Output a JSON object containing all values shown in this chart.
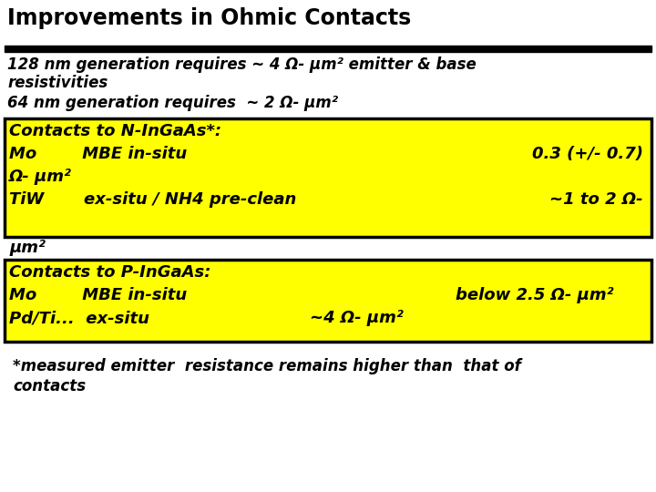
{
  "title": "Improvements in Ohmic Contacts",
  "bg_color": "#ffffff",
  "title_color": "#000000",
  "yellow_color": "#ffff00",
  "black_color": "#000000",
  "line1": "128 nm generation requires ~ 4 Ω- μm² emitter & base",
  "line2": "resistivities",
  "line3": "64 nm generation requires  ~ 2 Ω- μm²",
  "box1_line1": "Contacts to N-InGaAs*:",
  "box1_line2a": "Mo        MBE in-situ",
  "box1_line2b": "0.3 (+/- 0.7)",
  "box1_line3": "Ω- μm²",
  "box1_line4a": "TiW       ex-situ / NH4 pre-clean",
  "box1_line4b": "~1 to 2 Ω-",
  "box1_line5": "μm²",
  "box2_line1": "Contacts to P-InGaAs:",
  "box2_line2a": "Mo        MBE in-situ",
  "box2_line2b": "below 2.5 Ω- μm²",
  "box2_line3a": "Pd/Ti...  ex-situ",
  "box2_line3b": "~4 Ω- μm²",
  "footer1": "*measured emitter  resistance remains higher than  that of",
  "footer2": "contacts"
}
